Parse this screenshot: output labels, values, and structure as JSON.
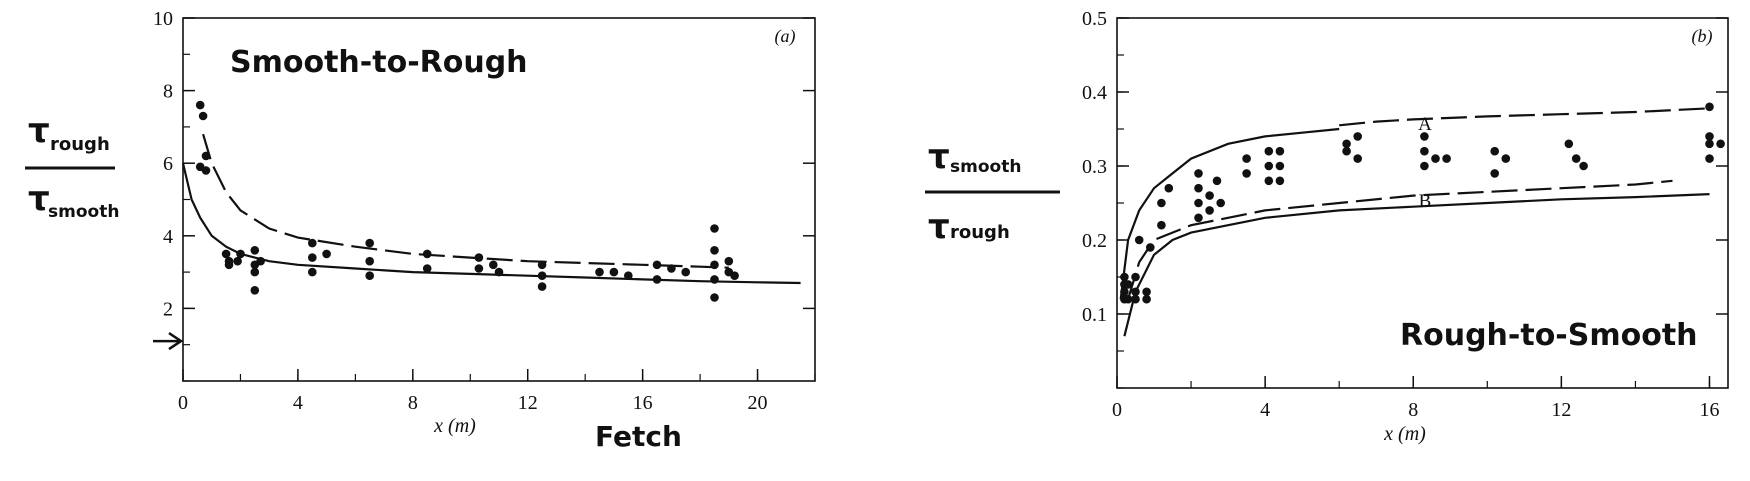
{
  "chart_data": [
    {
      "type": "scatter",
      "panel_label": "(a)",
      "annotation": "Smooth-to-Rough",
      "ylabel_num": "τ",
      "ylabel_num_sub": "rough",
      "ylabel_den": "τ",
      "ylabel_den_sub": "smooth",
      "xlabel": "x (m)",
      "xlabel_extra": "Fetch",
      "xlim": [
        0,
        22
      ],
      "ylim": [
        0,
        10
      ],
      "xticks": [
        "0",
        "4",
        "8",
        "12",
        "16",
        "20"
      ],
      "yticks": [
        "2",
        "4",
        "6",
        "8",
        "10"
      ],
      "arrow_y": 1.1,
      "points": [
        [
          0.6,
          7.6
        ],
        [
          0.7,
          7.3
        ],
        [
          0.8,
          6.2
        ],
        [
          0.8,
          5.8
        ],
        [
          0.6,
          5.9
        ],
        [
          1.5,
          3.5
        ],
        [
          1.6,
          3.3
        ],
        [
          1.6,
          3.2
        ],
        [
          1.9,
          3.3
        ],
        [
          2.0,
          3.5
        ],
        [
          2.5,
          3.6
        ],
        [
          2.5,
          3.2
        ],
        [
          2.5,
          3.0
        ],
        [
          2.7,
          3.3
        ],
        [
          2.5,
          2.5
        ],
        [
          4.5,
          3.8
        ],
        [
          4.5,
          3.4
        ],
        [
          4.5,
          3.0
        ],
        [
          5.0,
          3.5
        ],
        [
          6.5,
          3.8
        ],
        [
          6.5,
          3.3
        ],
        [
          6.5,
          2.9
        ],
        [
          8.5,
          3.5
        ],
        [
          8.5,
          3.1
        ],
        [
          10.3,
          3.4
        ],
        [
          10.3,
          3.1
        ],
        [
          10.8,
          3.2
        ],
        [
          11.0,
          3.0
        ],
        [
          12.5,
          3.2
        ],
        [
          12.5,
          2.9
        ],
        [
          12.5,
          2.6
        ],
        [
          14.5,
          3.0
        ],
        [
          15.0,
          3.0
        ],
        [
          15.5,
          2.9
        ],
        [
          16.5,
          3.2
        ],
        [
          16.5,
          2.8
        ],
        [
          17.0,
          3.1
        ],
        [
          17.5,
          3.0
        ],
        [
          18.5,
          4.2
        ],
        [
          18.5,
          3.6
        ],
        [
          18.5,
          3.2
        ],
        [
          18.5,
          2.8
        ],
        [
          18.5,
          2.3
        ],
        [
          19.0,
          3.3
        ],
        [
          19.0,
          3.0
        ],
        [
          19.2,
          2.9
        ]
      ],
      "series": [
        {
          "style": "solid",
          "x": [
            0.0,
            0.3,
            0.6,
            1.0,
            1.5,
            2.0,
            3.0,
            4.0,
            6.0,
            8.0,
            10.0,
            12.0,
            14.0,
            16.0,
            18.0,
            20.0,
            21.5
          ],
          "y": [
            6.0,
            5.0,
            4.5,
            4.0,
            3.7,
            3.5,
            3.3,
            3.2,
            3.1,
            3.0,
            2.95,
            2.9,
            2.85,
            2.8,
            2.75,
            2.72,
            2.7
          ]
        },
        {
          "style": "dashed",
          "x": [
            0.7,
            1.0,
            1.5,
            2.0,
            3.0,
            4.0,
            6.0,
            8.0,
            10.0,
            12.0,
            14.0,
            16.0,
            18.0,
            19.0
          ],
          "y": [
            6.8,
            6.0,
            5.2,
            4.7,
            4.2,
            3.95,
            3.7,
            3.5,
            3.4,
            3.3,
            3.25,
            3.2,
            3.15,
            3.12
          ]
        }
      ]
    },
    {
      "type": "scatter",
      "panel_label": "(b)",
      "annotation": "Rough-to-Smooth",
      "ylabel_num": "τ",
      "ylabel_num_sub": "smooth",
      "ylabel_den": "τ",
      "ylabel_den_sub": "rough",
      "xlabel": "x (m)",
      "xlim": [
        0,
        16.5
      ],
      "ylim": [
        0,
        0.5
      ],
      "xticks": [
        "0",
        "4",
        "8",
        "12",
        "16"
      ],
      "yticks": [
        "0.1",
        "0.2",
        "0.3",
        "0.4",
        "0.5"
      ],
      "curve_labels": [
        "A",
        "B"
      ],
      "points": [
        [
          0.2,
          0.15
        ],
        [
          0.2,
          0.14
        ],
        [
          0.2,
          0.13
        ],
        [
          0.2,
          0.12
        ],
        [
          0.3,
          0.14
        ],
        [
          0.3,
          0.12
        ],
        [
          0.5,
          0.15
        ],
        [
          0.5,
          0.13
        ],
        [
          0.5,
          0.12
        ],
        [
          0.8,
          0.13
        ],
        [
          0.8,
          0.12
        ],
        [
          0.6,
          0.2
        ],
        [
          0.9,
          0.19
        ],
        [
          1.2,
          0.25
        ],
        [
          1.2,
          0.22
        ],
        [
          1.4,
          0.27
        ],
        [
          2.2,
          0.29
        ],
        [
          2.2,
          0.27
        ],
        [
          2.2,
          0.25
        ],
        [
          2.2,
          0.23
        ],
        [
          2.5,
          0.26
        ],
        [
          2.5,
          0.24
        ],
        [
          2.7,
          0.28
        ],
        [
          2.8,
          0.25
        ],
        [
          3.5,
          0.31
        ],
        [
          3.5,
          0.29
        ],
        [
          4.1,
          0.32
        ],
        [
          4.1,
          0.3
        ],
        [
          4.1,
          0.28
        ],
        [
          4.4,
          0.32
        ],
        [
          4.4,
          0.3
        ],
        [
          4.4,
          0.28
        ],
        [
          6.2,
          0.33
        ],
        [
          6.2,
          0.32
        ],
        [
          6.5,
          0.34
        ],
        [
          6.5,
          0.31
        ],
        [
          8.3,
          0.34
        ],
        [
          8.3,
          0.32
        ],
        [
          8.3,
          0.3
        ],
        [
          8.6,
          0.31
        ],
        [
          8.9,
          0.31
        ],
        [
          10.2,
          0.32
        ],
        [
          10.2,
          0.29
        ],
        [
          10.5,
          0.31
        ],
        [
          12.2,
          0.33
        ],
        [
          12.4,
          0.31
        ],
        [
          12.6,
          0.3
        ],
        [
          16.0,
          0.38
        ],
        [
          16.0,
          0.34
        ],
        [
          16.0,
          0.33
        ],
        [
          16.0,
          0.31
        ],
        [
          16.3,
          0.33
        ]
      ],
      "series": [
        {
          "name": "A",
          "style": "solid",
          "x": [
            0.1,
            0.3,
            0.6,
            1.0,
            1.5,
            2.0,
            3.0,
            4.0,
            5.0,
            6.0
          ],
          "y": [
            0.12,
            0.2,
            0.24,
            0.27,
            0.29,
            0.31,
            0.33,
            0.34,
            0.345,
            0.35
          ]
        },
        {
          "name": "A",
          "style": "dashed",
          "x": [
            6.0,
            7.0,
            8.0,
            10.0,
            12.0,
            14.0,
            16.0
          ],
          "y": [
            0.355,
            0.36,
            0.363,
            0.367,
            0.37,
            0.373,
            0.378
          ]
        },
        {
          "name": "B",
          "style": "dashed",
          "x": [
            0.3,
            0.6,
            1.0,
            1.5,
            2.0,
            3.0,
            4.0,
            6.0,
            8.0,
            10.0,
            12.0,
            14.0,
            15.0
          ],
          "y": [
            0.12,
            0.17,
            0.2,
            0.21,
            0.22,
            0.23,
            0.24,
            0.25,
            0.26,
            0.265,
            0.27,
            0.275,
            0.28
          ]
        },
        {
          "name": "B",
          "style": "solid",
          "x": [
            0.2,
            0.5,
            1.0,
            1.5,
            2.0,
            3.0,
            4.0,
            6.0,
            8.0,
            10.0,
            12.0,
            14.0,
            16.0
          ],
          "y": [
            0.07,
            0.13,
            0.18,
            0.2,
            0.21,
            0.22,
            0.23,
            0.24,
            0.245,
            0.25,
            0.255,
            0.258,
            0.262
          ]
        }
      ]
    }
  ]
}
